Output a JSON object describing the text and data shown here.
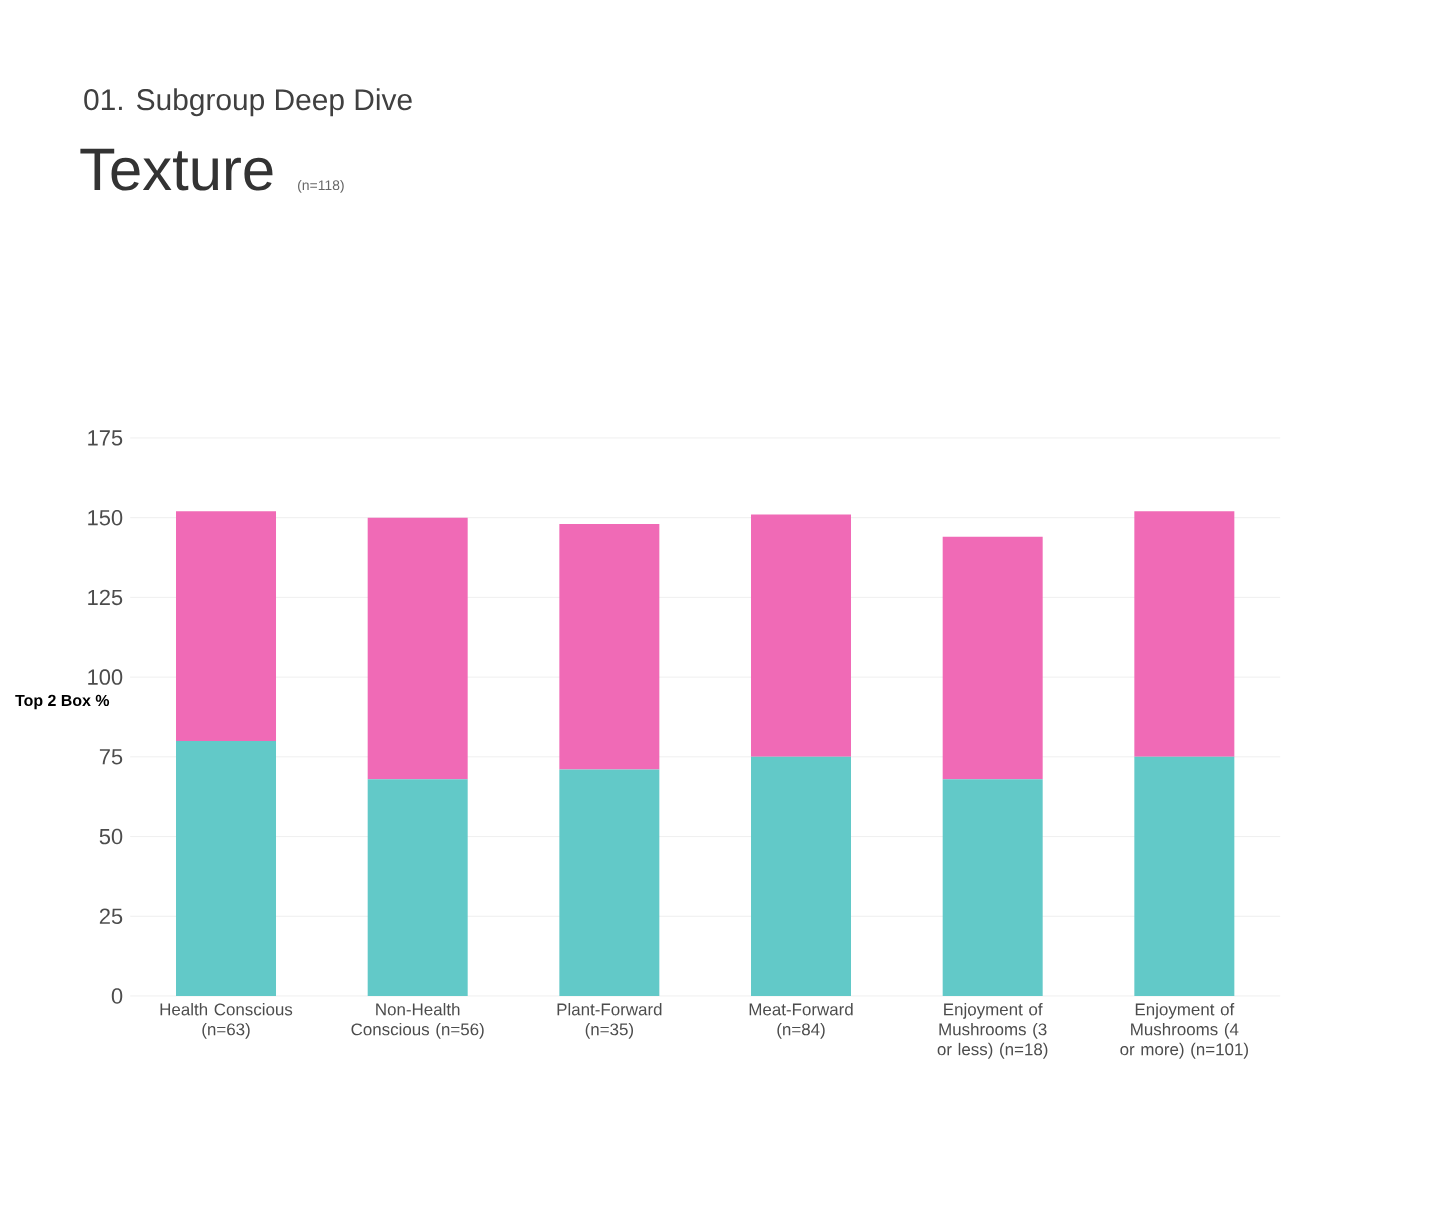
{
  "chart_data": {
    "type": "bar",
    "stacked": true,
    "subtitle": "01. Subgroup Deep Dive",
    "title": "Texture",
    "annotations": [
      "(n=118)"
    ],
    "ylabel": "Top 2 Box %",
    "categories": [
      "Health Conscious (n=63)",
      "Non-Health Conscious (n=56)",
      "Plant-Forward (n=35)",
      "Meat-Forward (n=84)",
      "Enjoyment of Mushrooms (3 or less) (n=18)",
      "Enjoyment of Mushrooms (4 or more) (n=101)"
    ],
    "series": [
      {
        "color": "#62c9c8",
        "values": [
          80,
          68,
          71,
          75,
          68,
          75
        ]
      },
      {
        "color": "#f06ab6",
        "values": [
          72,
          82,
          77,
          76,
          76,
          77
        ]
      }
    ],
    "ylim": [
      0,
      175
    ],
    "yticks": [
      0,
      25,
      50,
      75,
      100,
      125,
      150,
      175
    ],
    "grid": "y"
  }
}
